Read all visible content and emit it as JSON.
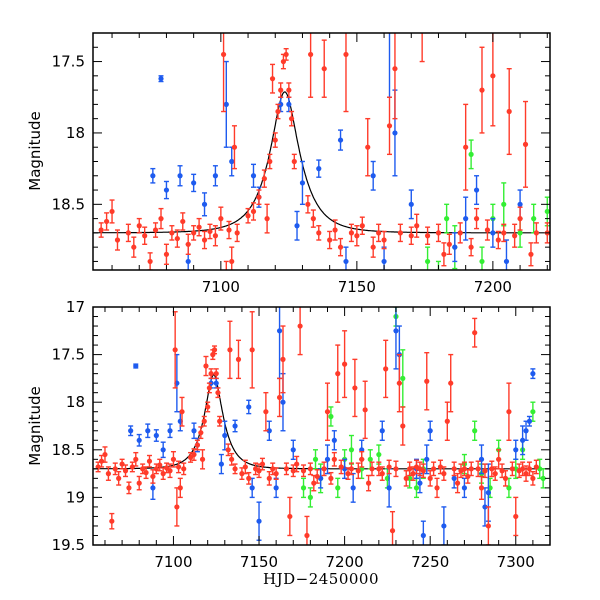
{
  "chart_data": {
    "type": "scatter",
    "xlabel": "HJD−2450000",
    "ylabel": "Magnitude",
    "y_inverted": true,
    "grid": false,
    "model": {
      "kind": "point-lens",
      "t0": 7123.5,
      "tE": 10,
      "u0": 0.43,
      "baseline": 18.7,
      "color": "#000000"
    },
    "panels": [
      {
        "xlim": [
          7053,
          7221
        ],
        "ylim": [
          17.3,
          18.96
        ],
        "xticks": [
          7100,
          7150,
          7200
        ],
        "xtick_labels": [
          "7100",
          "7150",
          "7200"
        ],
        "yticks": [
          17.5,
          18,
          18.5
        ],
        "ytick_labels": [
          "17.5",
          "18",
          "18.5"
        ],
        "x_minor": 10,
        "y_minor": 0.1,
        "show_xlabel": false
      },
      {
        "xlim": [
          7053,
          7320
        ],
        "ylim": [
          17,
          19.5
        ],
        "xticks": [
          7100,
          7150,
          7200,
          7250,
          7300
        ],
        "xtick_labels": [
          "7100",
          "7150",
          "7200",
          "7250",
          "7300"
        ],
        "yticks": [
          17,
          17.5,
          18,
          18.5,
          19,
          19.5
        ],
        "ytick_labels": [
          "17",
          "17.5",
          "18",
          "18.5",
          "19",
          "19.5"
        ],
        "x_minor": 10,
        "y_minor": 0.1,
        "show_xlabel": true
      }
    ],
    "series": [
      {
        "name": "green",
        "color": "#33ee33",
        "points": [
          [
            7176,
            18.9,
            0.1
          ],
          [
            7180,
            19.0,
            0.1
          ],
          [
            7183,
            18.6,
            0.1
          ],
          [
            7186,
            18.8,
            0.15
          ],
          [
            7192,
            18.15,
            0.1
          ],
          [
            7196,
            18.9,
            0.1
          ],
          [
            7200,
            18.6,
            0.1
          ],
          [
            7204,
            18.5,
            0.15
          ],
          [
            7210,
            18.7,
            0.1
          ],
          [
            7215,
            18.6,
            0.1
          ],
          [
            7220,
            18.55,
            0.1
          ],
          [
            7225,
            18.8,
            0.1
          ],
          [
            7230,
            17.1,
            0.1
          ],
          [
            7234,
            17.75,
            0.3
          ],
          [
            7238,
            18.8,
            0.1
          ],
          [
            7242,
            18.9,
            0.1
          ],
          [
            7246,
            18.7,
            0.1
          ],
          [
            7270,
            18.65,
            0.1
          ],
          [
            7276,
            18.3,
            0.1
          ],
          [
            7280,
            18.75,
            0.1
          ],
          [
            7285,
            18.9,
            0.1
          ],
          [
            7290,
            18.5,
            0.1
          ],
          [
            7296,
            18.9,
            0.1
          ],
          [
            7300,
            18.7,
            0.1
          ],
          [
            7304,
            18.5,
            0.1
          ],
          [
            7310,
            18.1,
            0.1
          ],
          [
            7314,
            18.7,
            0.1
          ],
          [
            7316,
            18.8,
            0.1
          ]
        ]
      },
      {
        "name": "blue",
        "color": "#1e5bef",
        "points": [
          [
            7078,
            17.62,
            0.02
          ],
          [
            7075,
            18.3,
            0.05
          ],
          [
            7080,
            18.4,
            0.06
          ],
          [
            7085,
            18.3,
            0.07
          ],
          [
            7088,
            18.9,
            0.12
          ],
          [
            7090,
            18.35,
            0.06
          ],
          [
            7094,
            18.5,
            0.08
          ],
          [
            7098,
            18.3,
            0.07
          ],
          [
            7102,
            17.8,
            0.3
          ],
          [
            7104,
            18.2,
            0.1
          ],
          [
            7112,
            18.3,
            0.08
          ],
          [
            7114,
            18.45,
            0.07
          ],
          [
            7122,
            17.8,
            0.05
          ],
          [
            7125,
            17.8,
            0.05
          ],
          [
            7128,
            18.65,
            0.1
          ],
          [
            7130,
            18.35,
            0.15
          ],
          [
            7136,
            18.25,
            0.06
          ],
          [
            7144,
            18.05,
            0.07
          ],
          [
            7146,
            18.9,
            0.1
          ],
          [
            7150,
            19.25,
            0.2
          ],
          [
            7156,
            18.3,
            0.1
          ],
          [
            7160,
            18.9,
            0.1
          ],
          [
            7162,
            17.25,
            0.5
          ],
          [
            7164,
            18.0,
            0.3
          ],
          [
            7170,
            18.5,
            0.1
          ],
          [
            7186,
            18.8,
            0.1
          ],
          [
            7190,
            18.6,
            0.15
          ],
          [
            7194,
            18.4,
            0.1
          ],
          [
            7200,
            18.7,
            0.1
          ],
          [
            7205,
            18.9,
            0.15
          ],
          [
            7210,
            18.5,
            0.1
          ],
          [
            7222,
            18.3,
            0.1
          ],
          [
            7226,
            18.9,
            0.2
          ],
          [
            7230,
            17.25,
            0.4
          ],
          [
            7232,
            17.5,
            0.3
          ],
          [
            7242,
            18.7,
            0.1
          ],
          [
            7244,
            18.85,
            0.1
          ],
          [
            7246,
            19.4,
            0.15
          ],
          [
            7248,
            18.6,
            0.15
          ],
          [
            7250,
            18.3,
            0.1
          ],
          [
            7258,
            19.3,
            0.2
          ],
          [
            7264,
            18.8,
            0.1
          ],
          [
            7270,
            18.9,
            0.1
          ],
          [
            7280,
            18.6,
            0.15
          ],
          [
            7282,
            19.1,
            0.2
          ],
          [
            7284,
            18.95,
            0.3
          ],
          [
            7300,
            18.5,
            0.1
          ],
          [
            7304,
            18.4,
            0.15
          ],
          [
            7306,
            18.3,
            0.1
          ],
          [
            7308,
            18.2,
            0.05
          ],
          [
            7310,
            17.7,
            0.05
          ]
        ]
      },
      {
        "name": "red",
        "color": "#ff3b2a",
        "points": [
          [
            7056,
            18.68,
            0.05
          ],
          [
            7058,
            18.62,
            0.06
          ],
          [
            7060,
            18.55,
            0.08
          ],
          [
            7062,
            18.75,
            0.07
          ],
          [
            7064,
            19.25,
            0.08
          ],
          [
            7066,
            18.7,
            0.06
          ],
          [
            7068,
            18.8,
            0.07
          ],
          [
            7070,
            18.65,
            0.05
          ],
          [
            7072,
            18.72,
            0.06
          ],
          [
            7074,
            18.9,
            0.06
          ],
          [
            7076,
            18.68,
            0.05
          ],
          [
            7078,
            18.6,
            0.07
          ],
          [
            7080,
            18.85,
            0.07
          ],
          [
            7082,
            18.7,
            0.05
          ],
          [
            7084,
            18.74,
            0.06
          ],
          [
            7086,
            18.62,
            0.06
          ],
          [
            7088,
            18.78,
            0.07
          ],
          [
            7090,
            18.7,
            0.05
          ],
          [
            7092,
            18.66,
            0.06
          ],
          [
            7094,
            18.75,
            0.06
          ],
          [
            7096,
            18.69,
            0.05
          ],
          [
            7098,
            18.72,
            0.07
          ],
          [
            7100,
            18.6,
            0.08
          ],
          [
            7101,
            17.45,
            0.4
          ],
          [
            7102,
            19.1,
            0.2
          ],
          [
            7103,
            18.68,
            0.06
          ],
          [
            7104,
            18.9,
            0.1
          ],
          [
            7105,
            18.1,
            0.15
          ],
          [
            7106,
            18.7,
            0.06
          ],
          [
            7110,
            18.58,
            0.05
          ],
          [
            7112,
            18.55,
            0.06
          ],
          [
            7114,
            18.45,
            0.05
          ],
          [
            7116,
            18.32,
            0.06
          ],
          [
            7117,
            18.6,
            0.1
          ],
          [
            7118,
            18.2,
            0.05
          ],
          [
            7119,
            17.62,
            0.1
          ],
          [
            7120,
            18.05,
            0.05
          ],
          [
            7121,
            17.85,
            0.05
          ],
          [
            7122,
            17.7,
            0.05
          ],
          [
            7123,
            17.5,
            0.05
          ],
          [
            7124,
            17.45,
            0.04
          ],
          [
            7125,
            17.7,
            0.05
          ],
          [
            7126,
            17.9,
            0.05
          ],
          [
            7127,
            18.2,
            0.05
          ],
          [
            7132,
            18.5,
            0.06
          ],
          [
            7133,
            17.45,
            0.3
          ],
          [
            7134,
            18.6,
            0.06
          ],
          [
            7136,
            18.7,
            0.05
          ],
          [
            7138,
            17.55,
            0.2
          ],
          [
            7140,
            18.75,
            0.06
          ],
          [
            7142,
            18.68,
            0.07
          ],
          [
            7144,
            18.8,
            0.06
          ],
          [
            7146,
            17.45,
            0.4
          ],
          [
            7148,
            18.7,
            0.06
          ],
          [
            7150,
            18.72,
            0.07
          ],
          [
            7152,
            18.65,
            0.06
          ],
          [
            7154,
            18.1,
            0.2
          ],
          [
            7156,
            18.8,
            0.07
          ],
          [
            7158,
            18.7,
            0.06
          ],
          [
            7160,
            18.75,
            0.06
          ],
          [
            7162,
            17.95,
            0.2
          ],
          [
            7164,
            17.55,
            0.35
          ],
          [
            7166,
            18.7,
            0.06
          ],
          [
            7168,
            19.2,
            0.2
          ],
          [
            7170,
            18.72,
            0.06
          ],
          [
            7172,
            18.65,
            0.08
          ],
          [
            7174,
            17.2,
            0.3
          ],
          [
            7176,
            18.72,
            0.06
          ],
          [
            7178,
            19.4,
            0.2
          ],
          [
            7180,
            18.7,
            0.06
          ],
          [
            7182,
            18.85,
            0.08
          ],
          [
            7184,
            18.78,
            0.07
          ],
          [
            7188,
            18.7,
            0.07
          ],
          [
            7190,
            18.1,
            0.3
          ],
          [
            7192,
            18.8,
            0.06
          ],
          [
            7194,
            18.6,
            0.07
          ],
          [
            7196,
            17.7,
            0.3
          ],
          [
            7198,
            18.68,
            0.07
          ],
          [
            7200,
            17.6,
            0.35
          ],
          [
            7202,
            18.75,
            0.06
          ],
          [
            7204,
            18.7,
            0.06
          ],
          [
            7206,
            17.85,
            0.3
          ],
          [
            7208,
            18.72,
            0.08
          ],
          [
            7210,
            18.6,
            0.08
          ],
          [
            7212,
            18.08,
            0.3
          ],
          [
            7214,
            18.85,
            0.08
          ],
          [
            7216,
            18.7,
            0.07
          ],
          [
            7220,
            18.7,
            0.07
          ],
          [
            7222,
            18.75,
            0.07
          ],
          [
            7224,
            17.65,
            0.3
          ],
          [
            7226,
            18.68,
            0.07
          ],
          [
            7228,
            19.35,
            0.2
          ],
          [
            7230,
            18.7,
            0.08
          ],
          [
            7232,
            17.8,
            0.3
          ],
          [
            7234,
            18.25,
            0.2
          ],
          [
            7236,
            18.8,
            0.08
          ],
          [
            7238,
            18.7,
            0.07
          ],
          [
            7240,
            18.75,
            0.07
          ],
          [
            7242,
            18.68,
            0.07
          ],
          [
            7244,
            18.7,
            0.07
          ],
          [
            7246,
            18.72,
            0.07
          ],
          [
            7248,
            17.78,
            0.3
          ],
          [
            7250,
            18.8,
            0.08
          ],
          [
            7252,
            18.7,
            0.07
          ],
          [
            7254,
            18.9,
            0.1
          ],
          [
            7256,
            18.68,
            0.07
          ],
          [
            7258,
            18.75,
            0.07
          ],
          [
            7260,
            18.2,
            0.2
          ],
          [
            7262,
            17.8,
            0.3
          ],
          [
            7264,
            18.7,
            0.07
          ],
          [
            7266,
            18.85,
            0.1
          ],
          [
            7268,
            18.72,
            0.07
          ],
          [
            7270,
            18.7,
            0.07
          ],
          [
            7272,
            18.78,
            0.07
          ],
          [
            7274,
            18.7,
            0.07
          ],
          [
            7276,
            17.27,
            0.15
          ],
          [
            7278,
            18.7,
            0.08
          ],
          [
            7280,
            18.9,
            0.12
          ],
          [
            7282,
            18.72,
            0.07
          ],
          [
            7284,
            19.3,
            0.2
          ],
          [
            7286,
            18.7,
            0.08
          ],
          [
            7288,
            18.75,
            0.07
          ],
          [
            7290,
            18.6,
            0.1
          ],
          [
            7292,
            18.72,
            0.07
          ],
          [
            7294,
            18.8,
            0.08
          ],
          [
            7296,
            18.1,
            0.3
          ],
          [
            7298,
            18.7,
            0.07
          ],
          [
            7300,
            19.2,
            0.2
          ],
          [
            7302,
            18.72,
            0.07
          ],
          [
            7304,
            18.7,
            0.07
          ],
          [
            7306,
            18.75,
            0.08
          ],
          [
            7308,
            18.7,
            0.07
          ],
          [
            7310,
            18.8,
            0.07
          ],
          [
            7312,
            18.68,
            0.07
          ]
        ]
      }
    ]
  }
}
